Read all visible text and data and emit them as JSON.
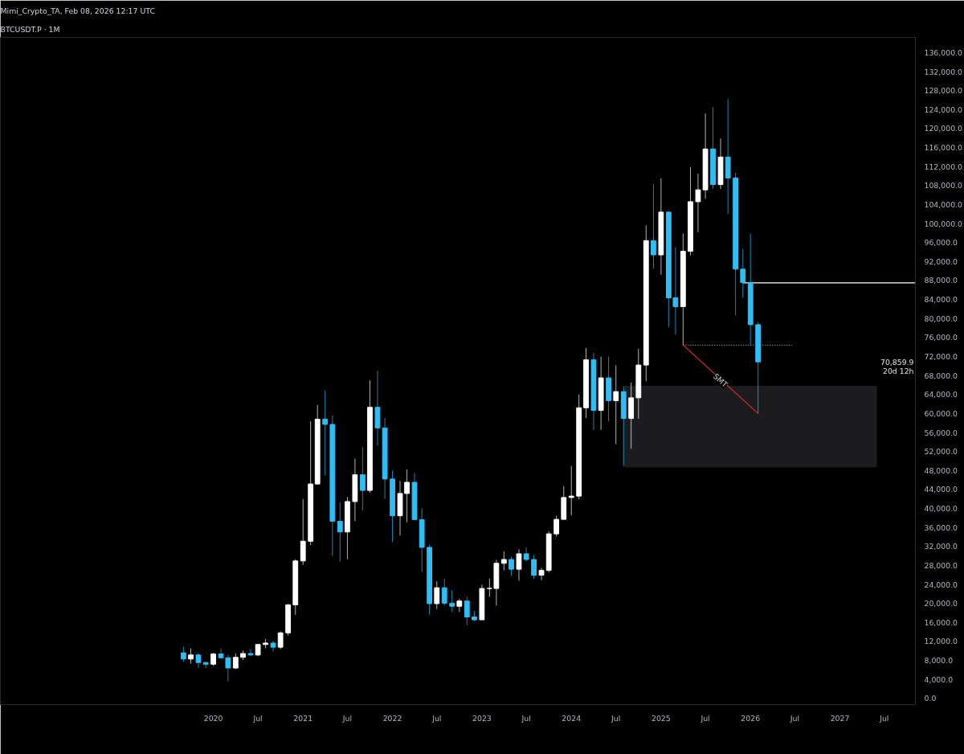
{
  "chart_data": {
    "type": "candlestick",
    "title": "Mimi_Crypto_TA, Feb 08, 2026 12:17 UTC",
    "subtitle": "BTCUSDT.P · 1M",
    "x": [
      "2019-09",
      "2019-10",
      "2019-11",
      "2019-12",
      "2020-01",
      "2020-02",
      "2020-03",
      "2020-04",
      "2020-05",
      "2020-06",
      "2020-07",
      "2020-08",
      "2020-09",
      "2020-10",
      "2020-11",
      "2020-12",
      "2021-01",
      "2021-02",
      "2021-03",
      "2021-04",
      "2021-05",
      "2021-06",
      "2021-07",
      "2021-08",
      "2021-09",
      "2021-10",
      "2021-11",
      "2021-12",
      "2022-01",
      "2022-02",
      "2022-03",
      "2022-04",
      "2022-05",
      "2022-06",
      "2022-07",
      "2022-08",
      "2022-09",
      "2022-10",
      "2022-11",
      "2022-12",
      "2023-01",
      "2023-02",
      "2023-03",
      "2023-04",
      "2023-05",
      "2023-06",
      "2023-07",
      "2023-08",
      "2023-09",
      "2023-10",
      "2023-11",
      "2023-12",
      "2024-01",
      "2024-02",
      "2024-03",
      "2024-04",
      "2024-05",
      "2024-06",
      "2024-07",
      "2024-08",
      "2024-09",
      "2024-10",
      "2024-11",
      "2024-12",
      "2025-01",
      "2025-02",
      "2025-03",
      "2025-04",
      "2025-05",
      "2025-06",
      "2025-07",
      "2025-08",
      "2025-09",
      "2025-10",
      "2025-11",
      "2025-12",
      "2026-01",
      "2026-02"
    ],
    "ohlc": [
      [
        9600,
        10900,
        7700,
        8300
      ],
      [
        8300,
        10500,
        7300,
        9150
      ],
      [
        9150,
        9500,
        6500,
        7550
      ],
      [
        7550,
        7750,
        6400,
        7200
      ],
      [
        7200,
        9600,
        6850,
        9350
      ],
      [
        9350,
        10500,
        8450,
        8550
      ],
      [
        8550,
        9200,
        3600,
        6400
      ],
      [
        6400,
        9450,
        6150,
        8650
      ],
      [
        8650,
        10050,
        8100,
        9450
      ],
      [
        9450,
        10400,
        8900,
        9140
      ],
      [
        9140,
        11450,
        8900,
        11350
      ],
      [
        11350,
        12500,
        10550,
        11650
      ],
      [
        11650,
        12100,
        9850,
        10780
      ],
      [
        10780,
        14100,
        10400,
        13800
      ],
      [
        13800,
        19900,
        13200,
        19700
      ],
      [
        19700,
        29300,
        17600,
        28950
      ],
      [
        28950,
        41950,
        28100,
        33100
      ],
      [
        33100,
        58350,
        32300,
        45150
      ],
      [
        45150,
        61800,
        45000,
        58800
      ],
      [
        58800,
        64900,
        47000,
        57700
      ],
      [
        57700,
        59600,
        30000,
        37300
      ],
      [
        37300,
        41300,
        28800,
        35050
      ],
      [
        35050,
        42400,
        29300,
        41450
      ],
      [
        41450,
        50500,
        37300,
        47100
      ],
      [
        47100,
        52900,
        39600,
        43800
      ],
      [
        43800,
        67000,
        43300,
        61300
      ],
      [
        61300,
        69000,
        53250,
        56950
      ],
      [
        56950,
        59050,
        42000,
        46200
      ],
      [
        46200,
        47950,
        32900,
        38450
      ],
      [
        38450,
        45800,
        34300,
        43150
      ],
      [
        43150,
        48200,
        37100,
        45500
      ],
      [
        45500,
        47450,
        37550,
        37650
      ],
      [
        37650,
        40000,
        26700,
        31800
      ],
      [
        31800,
        32400,
        17600,
        19950
      ],
      [
        19950,
        24650,
        18800,
        23300
      ],
      [
        23300,
        25200,
        19550,
        20050
      ],
      [
        20050,
        22800,
        18150,
        19400
      ],
      [
        19400,
        21000,
        18200,
        20500
      ],
      [
        20500,
        21450,
        15450,
        17150
      ],
      [
        17150,
        18400,
        16250,
        16550
      ],
      [
        16550,
        23950,
        16500,
        23150
      ],
      [
        23150,
        25250,
        21350,
        23150
      ],
      [
        23150,
        29200,
        19550,
        28450
      ],
      [
        28450,
        31000,
        26950,
        29250
      ],
      [
        29250,
        29850,
        25800,
        27200
      ],
      [
        27200,
        31400,
        24800,
        30450
      ],
      [
        30450,
        31800,
        28850,
        29250
      ],
      [
        29250,
        30200,
        25150,
        25950
      ],
      [
        25950,
        27500,
        24900,
        26950
      ],
      [
        26950,
        35200,
        26550,
        34650
      ],
      [
        34650,
        38450,
        34100,
        37700
      ],
      [
        37700,
        44700,
        37600,
        42300
      ],
      [
        42300,
        48950,
        38550,
        42600
      ],
      [
        42600,
        64000,
        41900,
        61200
      ],
      [
        61200,
        73800,
        59000,
        71300
      ],
      [
        71300,
        72800,
        56500,
        60650
      ],
      [
        60650,
        71950,
        56550,
        67500
      ],
      [
        67500,
        72000,
        58400,
        62700
      ],
      [
        62700,
        70100,
        53500,
        64600
      ],
      [
        64600,
        65600,
        49000,
        58950
      ],
      [
        58950,
        66500,
        52550,
        63300
      ],
      [
        63300,
        73600,
        58900,
        70200
      ],
      [
        70200,
        99600,
        66800,
        96400
      ],
      [
        96400,
        108300,
        90500,
        93400
      ],
      [
        93400,
        109500,
        89200,
        102400
      ],
      [
        102400,
        102500,
        78200,
        84350
      ],
      [
        84350,
        95000,
        76600,
        82500
      ],
      [
        82500,
        97900,
        74400,
        94150
      ],
      [
        94150,
        111900,
        93300,
        104600
      ],
      [
        104600,
        110500,
        98200,
        107100
      ],
      [
        107100,
        123200,
        105200,
        115700
      ],
      [
        115700,
        124500,
        107300,
        108200
      ],
      [
        108200,
        117900,
        107250,
        114000
      ],
      [
        114000,
        126200,
        102000,
        109600
      ],
      [
        109600,
        110700,
        80600,
        90400
      ],
      [
        90400,
        94600,
        84400,
        87600
      ],
      [
        87600,
        97900,
        74500,
        78700
      ],
      [
        78700,
        79300,
        60000,
        70860
      ]
    ],
    "colors": [
      "#2ebdf5",
      "#ffffff",
      "#2ebdf5",
      "#2ebdf5",
      "#ffffff",
      "#2ebdf5",
      "#2ebdf5",
      "#ffffff",
      "#ffffff",
      "#2ebdf5",
      "#ffffff",
      "#ffffff",
      "#2ebdf5",
      "#ffffff",
      "#ffffff",
      "#ffffff",
      "#ffffff",
      "#ffffff",
      "#ffffff",
      "#2ebdf5",
      "#2ebdf5",
      "#2ebdf5",
      "#ffffff",
      "#ffffff",
      "#2ebdf5",
      "#ffffff",
      "#2ebdf5",
      "#2ebdf5",
      "#2ebdf5",
      "#ffffff",
      "#ffffff",
      "#2ebdf5",
      "#2ebdf5",
      "#2ebdf5",
      "#ffffff",
      "#2ebdf5",
      "#2ebdf5",
      "#ffffff",
      "#2ebdf5",
      "#2ebdf5",
      "#ffffff",
      "#ffffff",
      "#ffffff",
      "#ffffff",
      "#2ebdf5",
      "#ffffff",
      "#2ebdf5",
      "#2ebdf5",
      "#ffffff",
      "#ffffff",
      "#ffffff",
      "#ffffff",
      "#ffffff",
      "#ffffff",
      "#ffffff",
      "#2ebdf5",
      "#ffffff",
      "#2ebdf5",
      "#ffffff",
      "#2ebdf5",
      "#ffffff",
      "#ffffff",
      "#ffffff",
      "#2ebdf5",
      "#ffffff",
      "#2ebdf5",
      "#2ebdf5",
      "#ffffff",
      "#ffffff",
      "#ffffff",
      "#ffffff",
      "#2ebdf5",
      "#ffffff",
      "#2ebdf5",
      "#2ebdf5",
      "#2ebdf5",
      "#2ebdf5",
      "#2ebdf5"
    ],
    "series": [
      {
        "type": "line",
        "color": "#1e1e21",
        "x": [
          "2024-08-01",
          "2027-06-01"
        ],
        "values": [
          65700,
          65700
        ],
        "lower": [
          48700,
          48700
        ],
        "upper": [
          65700,
          65700
        ]
      },
      {
        "type": "line",
        "color": "#ffffff",
        "x": [
          "2025-12-01",
          "2027-11-05"
        ],
        "values": [
          87500,
          87500
        ],
        "line_style": "solid"
      },
      {
        "type": "line",
        "color": "#9e9e9e",
        "x": [
          "2025-04-01",
          "2026-06-20"
        ],
        "values": [
          74400,
          74400
        ],
        "line_style": "dotted"
      },
      {
        "type": "line",
        "color": "#c62828",
        "x": [
          "2025-04-01",
          "2026-02-01"
        ],
        "values": [
          74400,
          60000
        ],
        "line_style": "solid"
      }
    ],
    "annotations": [
      {
        "text": "SMT",
        "x": "2025-09-01",
        "y": 67000
      },
      "70,859.9",
      "20d 12h"
    ],
    "xlim": [
      "2017-08-15",
      "2027-11-05"
    ],
    "xticks": [
      {
        "value": "2020-01-01",
        "label": "2020"
      },
      {
        "value": "2020-07-01",
        "label": "Jul"
      },
      {
        "value": "2021-01-01",
        "label": "2021"
      },
      {
        "value": "2021-07-01",
        "label": "Jul"
      },
      {
        "value": "2022-01-01",
        "label": "2022"
      },
      {
        "value": "2022-07-01",
        "label": "Jul"
      },
      {
        "value": "2023-01-01",
        "label": "2023"
      },
      {
        "value": "2023-07-01",
        "label": "Jul"
      },
      {
        "value": "2024-01-01",
        "label": "2024"
      },
      {
        "value": "2024-07-01",
        "label": "Jul"
      },
      {
        "value": "2025-01-01",
        "label": "2025"
      },
      {
        "value": "2025-07-01",
        "label": "Jul"
      },
      {
        "value": "2026-01-01",
        "label": "2026"
      },
      {
        "value": "2026-07-01",
        "label": "Jul"
      },
      {
        "value": "2027-01-01",
        "label": "2027"
      },
      {
        "value": "2027-07-01",
        "label": "Jul"
      }
    ],
    "ylim": [
      -1300,
      139200
    ],
    "yticks": [
      {
        "value": 0,
        "label": "0.0"
      },
      {
        "value": 4000,
        "label": "4,000.0"
      },
      {
        "value": 8000,
        "label": "8,000.0"
      },
      {
        "value": 12000,
        "label": "12,000.0"
      },
      {
        "value": 16000,
        "label": "16,000.0"
      },
      {
        "value": 20000,
        "label": "20,000.0"
      },
      {
        "value": 24000,
        "label": "24,000.0"
      },
      {
        "value": 28000,
        "label": "28,000.0"
      },
      {
        "value": 32000,
        "label": "32,000.0"
      },
      {
        "value": 36000,
        "label": "36,000.0"
      },
      {
        "value": 40000,
        "label": "40,000.0"
      },
      {
        "value": 44000,
        "label": "44,000.0"
      },
      {
        "value": 48000,
        "label": "48,000.0"
      },
      {
        "value": 52000,
        "label": "52,000.0"
      },
      {
        "value": 56000,
        "label": "56,000.0"
      },
      {
        "value": 60000,
        "label": "60,000.0"
      },
      {
        "value": 64000,
        "label": "64,000.0"
      },
      {
        "value": 68000,
        "label": "68,000.0"
      },
      {
        "value": 72000,
        "label": "72,000.0"
      },
      {
        "value": 76000,
        "label": "76,000.0"
      },
      {
        "value": 80000,
        "label": "80,000.0"
      },
      {
        "value": 84000,
        "label": "84,000.0"
      },
      {
        "value": 88000,
        "label": "88,000.0"
      },
      {
        "value": 92000,
        "label": "92,000.0"
      },
      {
        "value": 96000,
        "label": "96,000.0"
      },
      {
        "value": 100000,
        "label": "100,000.0"
      },
      {
        "value": 104000,
        "label": "104,000.0"
      },
      {
        "value": 108000,
        "label": "108,000.0"
      },
      {
        "value": 112000,
        "label": "112,000.0"
      },
      {
        "value": 116000,
        "label": "116,000.0"
      },
      {
        "value": 120000,
        "label": "120,000.0"
      },
      {
        "value": 124000,
        "label": "124,000.0"
      },
      {
        "value": 128000,
        "label": "128,000.0"
      },
      {
        "value": 132000,
        "label": "132,000.0"
      },
      {
        "value": 136000,
        "label": "136,000.0"
      }
    ],
    "grid": false
  }
}
